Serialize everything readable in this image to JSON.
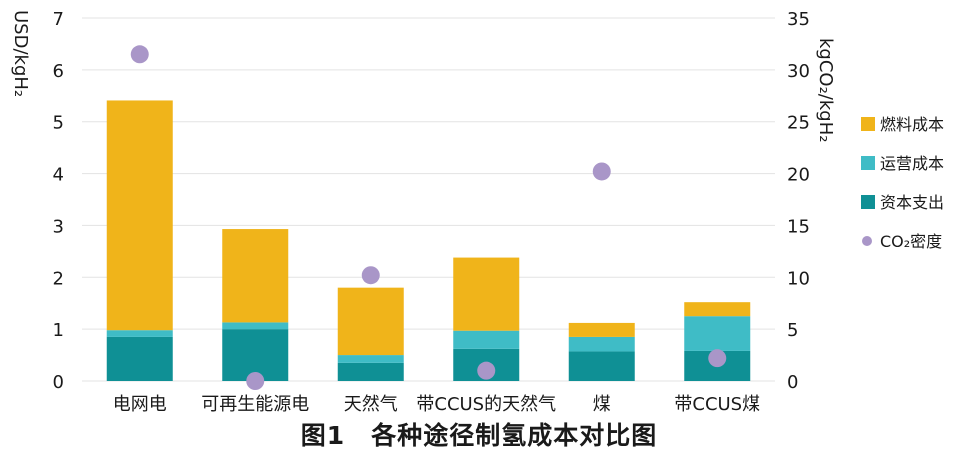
{
  "chart_data": {
    "type": "bar",
    "stacked": true,
    "caption": "图1　各种途径制氢成本对比图",
    "categories": [
      "电网电",
      "可再生能源电",
      "天然气",
      "带CCUS的天然气",
      "煤",
      "带CCUS煤"
    ],
    "y_left": {
      "label": "USD/kgH₂",
      "ylim": [
        0,
        7
      ],
      "ticks": [
        "0",
        "1",
        "2",
        "3",
        "4",
        "5",
        "6",
        "7"
      ]
    },
    "y_right": {
      "label": "kgCO₂/kgH₂",
      "ylim": [
        0,
        35
      ],
      "ticks": [
        "0",
        "5",
        "10",
        "15",
        "20",
        "25",
        "30",
        "35"
      ]
    },
    "grid": true,
    "legend_position": "right",
    "series": [
      {
        "name": "资本支出",
        "color": "#0f9095",
        "axis": "left",
        "values": [
          0.85,
          1.0,
          0.35,
          0.62,
          0.57,
          0.58
        ]
      },
      {
        "name": "运营成本",
        "color": "#3fbcc6",
        "axis": "left",
        "values": [
          0.13,
          0.13,
          0.15,
          0.35,
          0.28,
          0.67
        ]
      },
      {
        "name": "燃料成本",
        "color": "#f0b41a",
        "axis": "left",
        "values": [
          4.43,
          1.8,
          1.3,
          1.41,
          0.27,
          0.27
        ]
      }
    ],
    "scatter": {
      "name": "CO₂密度",
      "color": "#a996c8",
      "axis": "right",
      "values": [
        31.5,
        0.0,
        10.2,
        1.0,
        20.2,
        2.2
      ]
    },
    "legend": [
      {
        "name": "燃料成本",
        "color": "#f0b41a",
        "marker": "square"
      },
      {
        "name": "运营成本",
        "color": "#3fbcc6",
        "marker": "square"
      },
      {
        "name": "资本支出",
        "color": "#0f9095",
        "marker": "square"
      },
      {
        "name": "CO₂密度",
        "color": "#a996c8",
        "marker": "circle"
      }
    ]
  }
}
